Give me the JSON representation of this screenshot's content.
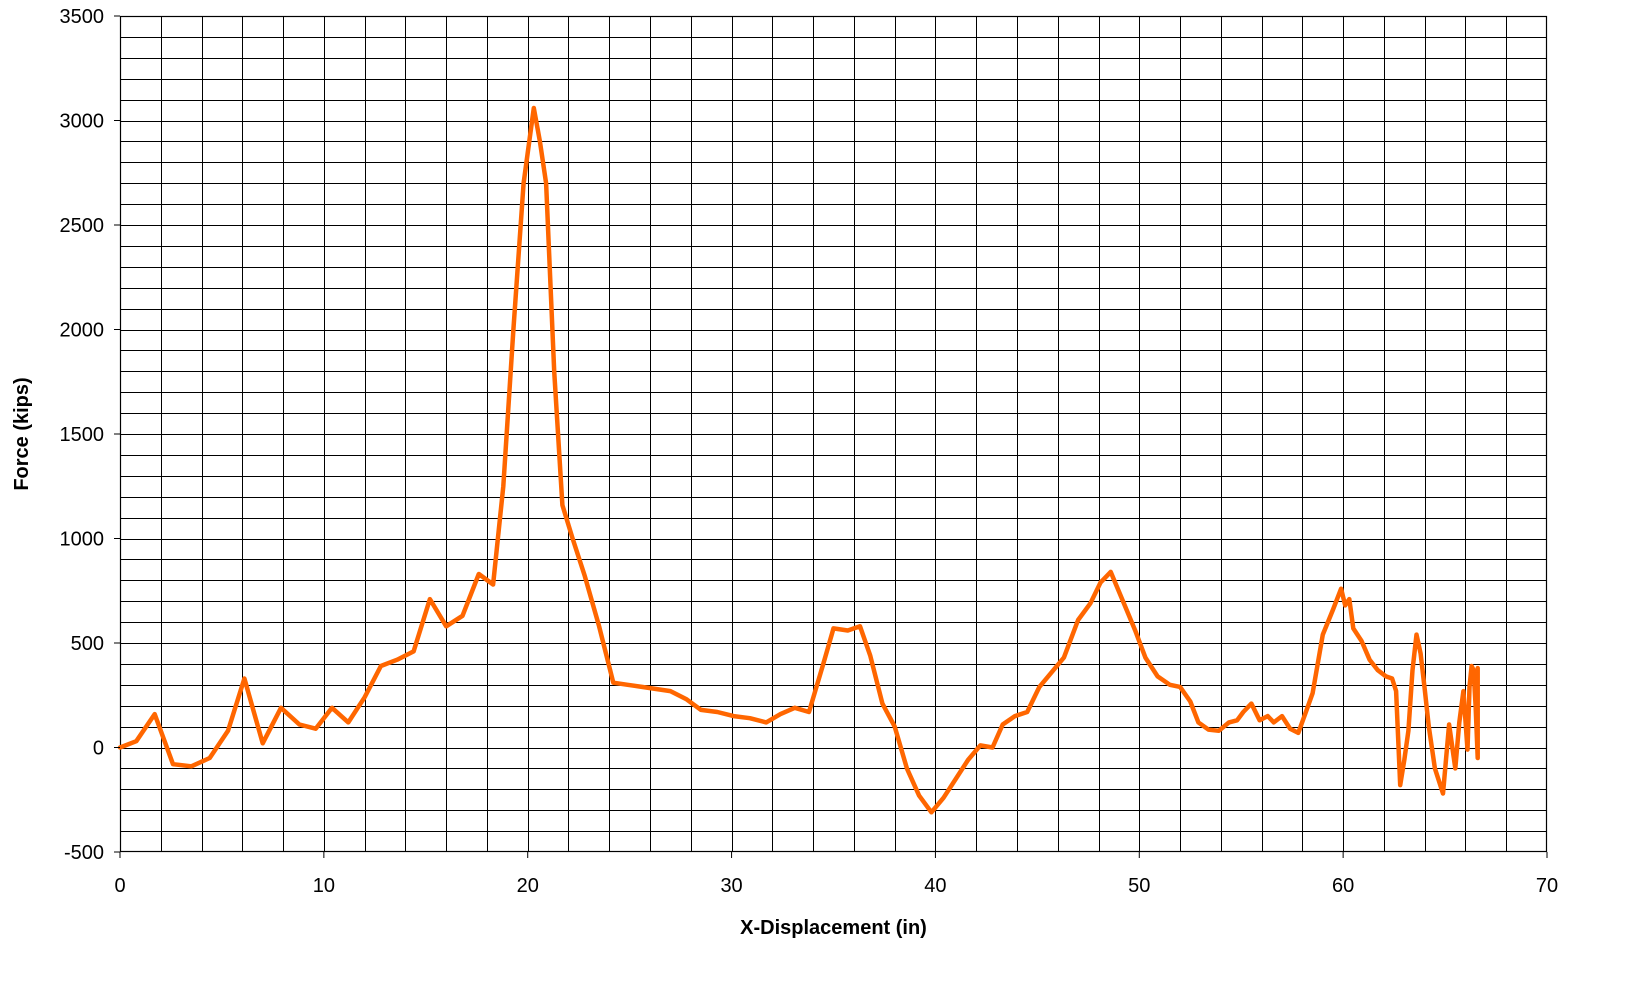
{
  "chart_data": {
    "type": "line",
    "title": "",
    "xlabel": "X-Displacement (in)",
    "ylabel": "Force (kips)",
    "xlim": [
      0,
      70
    ],
    "ylim": [
      -500,
      3500
    ],
    "x_ticks": [
      0,
      10,
      20,
      30,
      40,
      50,
      60,
      70
    ],
    "y_ticks": [
      -500,
      0,
      500,
      1000,
      1500,
      2000,
      2500,
      3000,
      3500
    ],
    "x_minor_step": 2,
    "y_minor_step": 100,
    "grid": true,
    "legend": "none",
    "colors": {
      "series": "#FF6600",
      "grid": "#000000",
      "plot_background": "#FFFFFF"
    },
    "series": [
      {
        "x": [
          0,
          0.8,
          1.7,
          2.6,
          3.5,
          4.4,
          5.3,
          6.1,
          7.0,
          7.9,
          8.8,
          9.6,
          10.4,
          11.2,
          12.0,
          12.8,
          13.6,
          14.4,
          15.2,
          16.0,
          16.8,
          17.6,
          18.3,
          18.8,
          19.3,
          19.8,
          20.3,
          20.6,
          20.9,
          21.3,
          21.7,
          22.2,
          22.8,
          23.5,
          24.2,
          24.9,
          25.6,
          26.3,
          27.0,
          27.8,
          28.5,
          29.3,
          30.1,
          30.9,
          31.7,
          32.4,
          33.1,
          33.8,
          34.5,
          35.0,
          35.7,
          36.3,
          36.8,
          37.4,
          38.0,
          38.6,
          39.2,
          39.8,
          40.4,
          41.0,
          41.6,
          42.2,
          42.8,
          43.3,
          43.9,
          44.5,
          45.1,
          45.7,
          46.3,
          47.0,
          47.6,
          48.1,
          48.6,
          49.2,
          49.8,
          50.3,
          50.9,
          51.5,
          52.0,
          52.5,
          52.9,
          53.4,
          53.9,
          54.4,
          54.8,
          55.1,
          55.5,
          55.9,
          56.3,
          56.6,
          57.0,
          57.4,
          57.8,
          58.1,
          58.5,
          59.0,
          59.5,
          59.9,
          60.1,
          60.3,
          60.5,
          60.9,
          61.3,
          61.7,
          62.1,
          62.4,
          62.6,
          62.8,
          63.0,
          63.2,
          63.4,
          63.6,
          63.8,
          64.0,
          64.2,
          64.5,
          64.9,
          65.2,
          65.5,
          65.7,
          65.9,
          66.1,
          66.2,
          66.3,
          66.4,
          66.5,
          66.6,
          66.6,
          66.6
        ],
        "y": [
          0,
          30,
          160,
          -80,
          -90,
          -50,
          80,
          330,
          20,
          190,
          110,
          90,
          190,
          120,
          240,
          390,
          420,
          460,
          710,
          580,
          630,
          830,
          780,
          1250,
          2000,
          2700,
          3060,
          2900,
          2700,
          1800,
          1160,
          1000,
          820,
          580,
          310,
          300,
          290,
          280,
          270,
          230,
          180,
          170,
          150,
          140,
          120,
          160,
          190,
          170,
          400,
          570,
          560,
          580,
          440,
          210,
          100,
          -100,
          -230,
          -310,
          -240,
          -150,
          -60,
          10,
          0,
          110,
          150,
          170,
          290,
          360,
          430,
          610,
          690,
          790,
          840,
          700,
          560,
          430,
          340,
          300,
          290,
          220,
          120,
          85,
          80,
          120,
          130,
          170,
          210,
          130,
          150,
          120,
          150,
          90,
          70,
          150,
          260,
          540,
          660,
          760,
          680,
          710,
          570,
          510,
          420,
          370,
          340,
          330,
          270,
          -180,
          -60,
          80,
          370,
          540,
          450,
          280,
          100,
          -100,
          -220,
          110,
          -100,
          120,
          270,
          -10,
          290,
          390,
          370,
          200,
          -50,
          380,
          290
        ]
      }
    ]
  }
}
